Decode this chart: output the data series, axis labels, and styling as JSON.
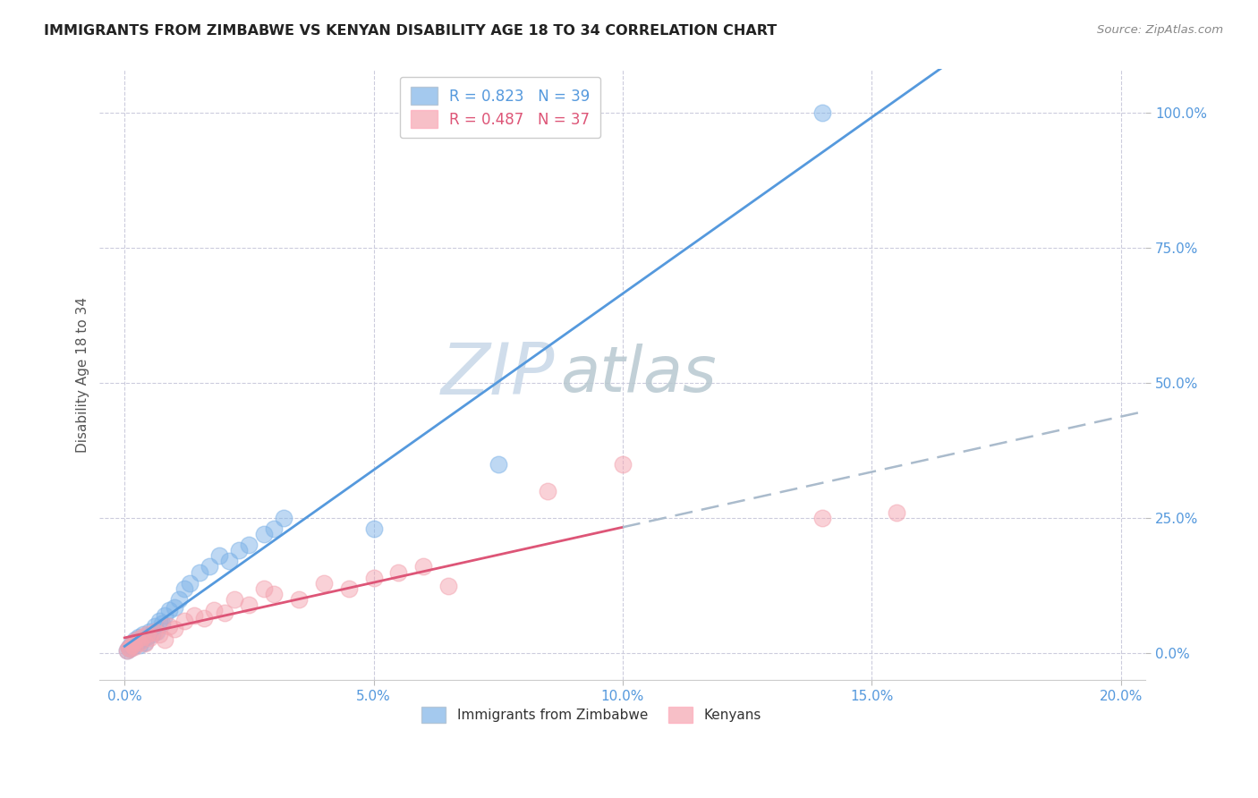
{
  "title": "IMMIGRANTS FROM ZIMBABWE VS KENYAN DISABILITY AGE 18 TO 34 CORRELATION CHART",
  "source": "Source: ZipAtlas.com",
  "xlabel_vals": [
    0.0,
    5.0,
    10.0,
    15.0,
    20.0
  ],
  "ylabel_vals": [
    0.0,
    25.0,
    50.0,
    75.0,
    100.0
  ],
  "xlim": [
    -0.5,
    20.5
  ],
  "ylim": [
    -5.0,
    108.0
  ],
  "zimbabwe_x": [
    0.05,
    0.08,
    0.1,
    0.12,
    0.15,
    0.18,
    0.2,
    0.22,
    0.25,
    0.28,
    0.3,
    0.35,
    0.38,
    0.4,
    0.45,
    0.5,
    0.55,
    0.6,
    0.65,
    0.7,
    0.75,
    0.8,
    0.9,
    1.0,
    1.1,
    1.2,
    1.3,
    1.5,
    1.7,
    1.9,
    2.1,
    2.3,
    2.5,
    2.8,
    3.0,
    3.2,
    5.0,
    7.5,
    14.0
  ],
  "zimbabwe_y": [
    0.5,
    1.0,
    0.8,
    1.5,
    1.2,
    2.0,
    1.8,
    2.5,
    2.0,
    3.0,
    1.5,
    2.5,
    3.5,
    2.0,
    3.0,
    4.0,
    3.5,
    5.0,
    4.0,
    6.0,
    5.5,
    7.0,
    8.0,
    8.5,
    10.0,
    12.0,
    13.0,
    15.0,
    16.0,
    18.0,
    17.0,
    19.0,
    20.0,
    22.0,
    23.0,
    25.0,
    23.0,
    35.0,
    100.0
  ],
  "kenya_x": [
    0.05,
    0.08,
    0.1,
    0.15,
    0.18,
    0.2,
    0.25,
    0.3,
    0.35,
    0.4,
    0.45,
    0.5,
    0.6,
    0.7,
    0.8,
    0.9,
    1.0,
    1.2,
    1.4,
    1.6,
    1.8,
    2.0,
    2.2,
    2.5,
    2.8,
    3.0,
    3.5,
    4.0,
    4.5,
    5.0,
    5.5,
    6.0,
    6.5,
    8.5,
    10.0,
    14.0,
    15.5
  ],
  "kenya_y": [
    0.5,
    1.0,
    0.8,
    1.5,
    2.0,
    1.2,
    2.5,
    2.0,
    3.0,
    1.8,
    3.5,
    2.8,
    4.0,
    3.5,
    2.5,
    5.0,
    4.5,
    6.0,
    7.0,
    6.5,
    8.0,
    7.5,
    10.0,
    9.0,
    12.0,
    11.0,
    10.0,
    13.0,
    12.0,
    14.0,
    15.0,
    16.0,
    12.5,
    30.0,
    35.0,
    25.0,
    26.0
  ],
  "zimbabwe_color": "#7EB3E8",
  "kenya_color": "#F4A4B0",
  "zimbabwe_line_color": "#5599DD",
  "kenya_line_color_solid": "#DD5577",
  "kenya_line_color_dashed": "#AABBCC",
  "legend_r_zimbabwe": "R = 0.823",
  "legend_n_zimbabwe": "N = 39",
  "legend_r_kenya": "R = 0.487",
  "legend_n_kenya": "N = 37",
  "watermark_zip": "ZIP",
  "watermark_atlas": "atlas",
  "watermark_color_zip": "#C8D8E8",
  "watermark_color_atlas": "#B8C8D0",
  "background_color": "#FFFFFF",
  "grid_color": "#CCCCDD",
  "tick_color": "#5599DD",
  "kenya_solid_x_end": 10.0
}
